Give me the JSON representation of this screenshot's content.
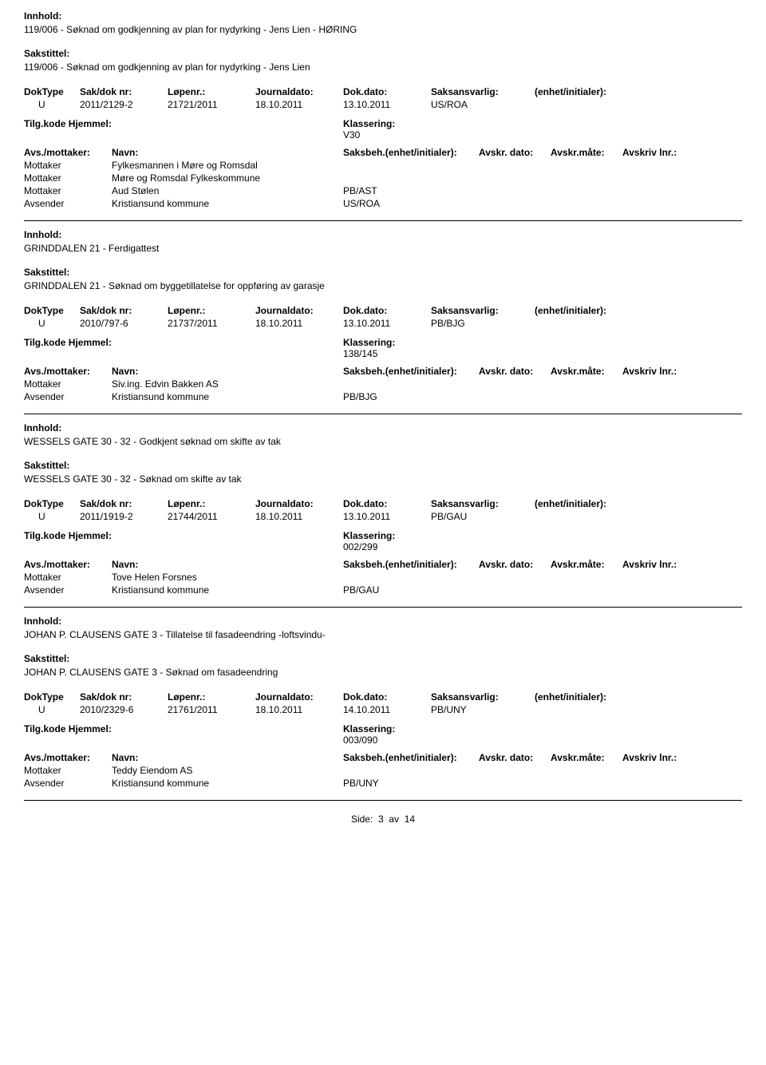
{
  "labels": {
    "innhold": "Innhold:",
    "sakstittel": "Sakstittel:",
    "doktype": "DokType",
    "sakdoknr": "Sak/dok nr:",
    "lopenr": "Løpenr.:",
    "journaldato": "Journaldato:",
    "dokdato": "Dok.dato:",
    "saksansvarlig": "Saksansvarlig:",
    "enhet": "(enhet/initialer):",
    "tilgkode": "Tilg.kode",
    "hjemmel": "Hjemmel:",
    "klassering": "Klassering:",
    "avsmottaker": "Avs./mottaker:",
    "navn": "Navn:",
    "saksbeh": "Saksbeh.(enhet/initialer):",
    "avskrdato": "Avskr. dato:",
    "avskrmate": "Avskr.måte:",
    "avskrivlnr": "Avskriv lnr.:",
    "mottaker": "Mottaker",
    "avsender": "Avsender"
  },
  "records": [
    {
      "innhold": "119/006 - Søknad om godkjenning av plan for nydyrking - Jens Lien - HØRING",
      "sakstittel": "119/006 - Søknad om godkjenning av plan for nydyrking - Jens Lien",
      "doktype": "U",
      "sakdok": "2011/2129-2",
      "lopenr": "21721/2011",
      "journaldato": "18.10.2011",
      "dokdato": "13.10.2011",
      "saksansvarlig": "US/ROA",
      "klassering": "V30",
      "parties": [
        {
          "role": "Mottaker",
          "name": "Fylkesmannen i Møre og Romsdal",
          "code": ""
        },
        {
          "role": "Mottaker",
          "name": "Møre og Romsdal Fylkeskommune",
          "code": ""
        },
        {
          "role": "Mottaker",
          "name": "Aud Stølen",
          "code": "PB/AST"
        },
        {
          "role": "Avsender",
          "name": "Kristiansund kommune",
          "code": "US/ROA"
        }
      ]
    },
    {
      "innhold": "GRINDDALEN 21 - Ferdigattest",
      "sakstittel": "GRINDDALEN 21 - Søknad om byggetillatelse for oppføring av garasje",
      "doktype": "U",
      "sakdok": "2010/797-6",
      "lopenr": "21737/2011",
      "journaldato": "18.10.2011",
      "dokdato": "13.10.2011",
      "saksansvarlig": "PB/BJG",
      "klassering": "138/145",
      "parties": [
        {
          "role": "Mottaker",
          "name": "Siv.ing. Edvin Bakken AS",
          "code": ""
        },
        {
          "role": "Avsender",
          "name": "Kristiansund kommune",
          "code": "PB/BJG"
        }
      ]
    },
    {
      "innhold": "WESSELS GATE 30 - 32 - Godkjent søknad om skifte av tak",
      "sakstittel": "WESSELS GATE 30 - 32 - Søknad om skifte av tak",
      "doktype": "U",
      "sakdok": "2011/1919-2",
      "lopenr": "21744/2011",
      "journaldato": "18.10.2011",
      "dokdato": "13.10.2011",
      "saksansvarlig": "PB/GAU",
      "klassering": "002/299",
      "parties": [
        {
          "role": "Mottaker",
          "name": "Tove Helen Forsnes",
          "code": ""
        },
        {
          "role": "Avsender",
          "name": "Kristiansund kommune",
          "code": "PB/GAU"
        }
      ]
    },
    {
      "innhold": "JOHAN P. CLAUSENS GATE 3 - Tillatelse til fasadeendring -loftsvindu-",
      "sakstittel": "JOHAN P. CLAUSENS GATE 3 - Søknad om fasadeendring",
      "doktype": "U",
      "sakdok": "2010/2329-6",
      "lopenr": "21761/2011",
      "journaldato": "18.10.2011",
      "dokdato": "14.10.2011",
      "saksansvarlig": "PB/UNY",
      "klassering": "003/090",
      "parties": [
        {
          "role": "Mottaker",
          "name": "Teddy Eiendom AS",
          "code": ""
        },
        {
          "role": "Avsender",
          "name": "Kristiansund kommune",
          "code": "PB/UNY"
        }
      ]
    }
  ],
  "footer": {
    "side": "Side:",
    "page": "3",
    "av": "av",
    "total": "14"
  }
}
